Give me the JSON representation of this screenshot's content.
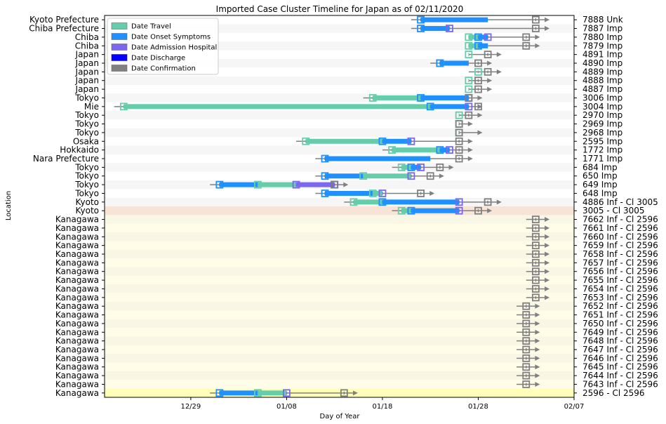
{
  "chart_data": {
    "type": "timeline",
    "title": "Imported Case Cluster Timeline for Japan as of 02/11/2020",
    "xlabel": "Day of Year",
    "ylabel": "Location",
    "x_ticks": [
      {
        "day": 0,
        "label": "12/29"
      },
      {
        "day": 10,
        "label": "01/08"
      },
      {
        "day": 20,
        "label": "01/18"
      },
      {
        "day": 30,
        "label": "01/28"
      },
      {
        "day": 40,
        "label": "02/07"
      }
    ],
    "xlim": [
      -9,
      40
    ],
    "legend": [
      {
        "label": "Date Travel",
        "key": "travel"
      },
      {
        "label": "Date Onset Symptoms",
        "key": "onset"
      },
      {
        "label": "Date Admission Hospital",
        "key": "admission"
      },
      {
        "label": "Date Discharge",
        "key": "discharge"
      },
      {
        "label": "Date Confirmation",
        "key": "confirmation"
      }
    ],
    "colors": {
      "travel": "#66cdaa",
      "onset": "#1e90ff",
      "admission": "#7b68ee",
      "discharge": "#0000ff",
      "confirmation": "#808080",
      "band_cluster_3005": "#f8e4d6",
      "band_cluster_2596": "#fffce8",
      "band_2596_index": "#ffffb8",
      "stripe": "#f2f2f2"
    },
    "rows": [
      {
        "location": "Kyoto Prefecture",
        "case": "7888 Unk",
        "band": "",
        "travel": [],
        "onset": [
          24,
          31
        ],
        "admission": null,
        "confirmation": 36,
        "range": [
          23,
          37
        ]
      },
      {
        "location": "Chiba Prefecture",
        "case": "7887 Imp",
        "band": "",
        "travel": [],
        "onset": [
          24,
          27
        ],
        "admission": 27,
        "confirmation": 36,
        "range": [
          23,
          37
        ]
      },
      {
        "location": "Chiba",
        "case": "7880 Imp",
        "band": "",
        "travel": [
          29,
          30
        ],
        "onset": [
          30,
          31
        ],
        "admission": 31,
        "confirmation": 35,
        "range": [
          29,
          36
        ]
      },
      {
        "location": "Chiba",
        "case": "7879 Imp",
        "band": "",
        "travel": [
          29,
          31
        ],
        "onset": [
          30,
          31
        ],
        "admission": null,
        "confirmation": 35,
        "range": [
          29,
          36
        ]
      },
      {
        "location": "Japan",
        "case": "4891 Imp",
        "band": "",
        "travel": [
          29,
          29
        ],
        "onset": [],
        "admission": null,
        "confirmation": 31,
        "range": [
          29,
          32
        ]
      },
      {
        "location": "Japan",
        "case": "4890 Imp",
        "band": "",
        "travel": [
          26,
          29
        ],
        "onset": [
          26,
          29
        ],
        "admission": null,
        "confirmation": 30,
        "range": [
          25,
          31
        ]
      },
      {
        "location": "Japan",
        "case": "4889 Imp",
        "band": "",
        "travel": [
          30,
          30
        ],
        "onset": [],
        "admission": null,
        "confirmation": 31,
        "range": [
          29,
          32
        ]
      },
      {
        "location": "Japan",
        "case": "4888 Imp",
        "band": "",
        "travel": [
          29,
          29
        ],
        "onset": [],
        "admission": null,
        "confirmation": 30,
        "range": [
          29,
          31
        ]
      },
      {
        "location": "Japan",
        "case": "4887 Imp",
        "band": "",
        "travel": [
          29,
          29
        ],
        "onset": [],
        "admission": null,
        "confirmation": 30,
        "range": [
          29,
          31
        ]
      },
      {
        "location": "Tokyo",
        "case": "3006 Imp",
        "band": "",
        "travel": [
          19,
          24
        ],
        "onset": [
          24,
          29
        ],
        "admission": 29,
        "confirmation": 29,
        "range": [
          18,
          30
        ]
      },
      {
        "location": "Mie",
        "case": "3004 Imp",
        "band": "",
        "travel": [
          -7,
          25
        ],
        "onset": [
          25,
          29
        ],
        "admission": 29,
        "confirmation": 30,
        "range": [
          -8,
          30
        ]
      },
      {
        "location": "Tokyo",
        "case": "2970 Imp",
        "band": "",
        "travel": [
          28,
          28
        ],
        "onset": [],
        "admission": null,
        "confirmation": 29,
        "range": [
          28,
          30
        ]
      },
      {
        "location": "Tokyo",
        "case": "2969 Imp",
        "band": "",
        "travel": [
          28,
          28
        ],
        "onset": [],
        "admission": null,
        "confirmation": 28,
        "range": [
          28,
          29
        ]
      },
      {
        "location": "Tokyo",
        "case": "2968 Imp",
        "band": "",
        "travel": [
          28,
          28
        ],
        "onset": [],
        "admission": null,
        "confirmation": 28,
        "range": [
          28,
          30
        ]
      },
      {
        "location": "Osaka",
        "case": "2595 Imp",
        "band": "",
        "travel": [
          12,
          20
        ],
        "onset": [
          20,
          23
        ],
        "admission": 23,
        "confirmation": 28,
        "range": [
          11,
          29
        ]
      },
      {
        "location": "Hokkaido",
        "case": "1772 Imp",
        "band": "",
        "travel": [
          21,
          26
        ],
        "onset": [
          26,
          27
        ],
        "admission": 27,
        "confirmation": 28,
        "range": [
          20,
          29
        ]
      },
      {
        "location": "Nara Prefecture",
        "case": "1771 Imp",
        "band": "",
        "travel": [],
        "onset": [
          14,
          25
        ],
        "admission": null,
        "confirmation": 28,
        "range": [
          13,
          29
        ]
      },
      {
        "location": "Tokyo",
        "case": "684 Imp",
        "band": "",
        "travel": [
          22,
          23
        ],
        "onset": [
          23,
          24
        ],
        "admission": 24,
        "confirmation": 26,
        "range": [
          21,
          27
        ]
      },
      {
        "location": "Tokyo",
        "case": "650 Imp",
        "band": "",
        "travel": [
          18,
          23
        ],
        "onset": [
          14,
          18
        ],
        "admission": 23,
        "confirmation": 25,
        "range": [
          13,
          26
        ]
      },
      {
        "location": "Tokyo",
        "case": "649 Imp",
        "band": "",
        "travel": [
          7,
          11
        ],
        "onset": [
          3,
          7
        ],
        "admission": 11,
        "discharge": 15,
        "confirmation": 15,
        "range": [
          2,
          16
        ]
      },
      {
        "location": "Tokyo",
        "case": "648 Imp",
        "band": "",
        "travel": [
          19,
          20
        ],
        "onset": [
          14,
          19
        ],
        "admission": 20,
        "confirmation": 24,
        "range": [
          13,
          25
        ]
      },
      {
        "location": "Kyoto",
        "case": "4886 Inf - Cl 3005",
        "band": "",
        "travel": [
          17,
          20
        ],
        "onset": [
          20,
          28
        ],
        "admission": 28,
        "confirmation": 31,
        "range": [
          16,
          32
        ]
      },
      {
        "location": "Kyoto",
        "case": "3005 - Cl 3005",
        "band": "cluster_3005",
        "travel": [
          22,
          23
        ],
        "onset": [
          23,
          28
        ],
        "admission": 28,
        "confirmation": 30,
        "range": [
          21,
          31
        ]
      },
      {
        "location": "Kanagawa",
        "case": "7662 Inf - Cl 2596",
        "band": "cluster_2596",
        "travel": [],
        "onset": [],
        "admission": null,
        "confirmation": 36,
        "range": [
          35,
          37
        ]
      },
      {
        "location": "Kanagawa",
        "case": "7661 Inf - Cl 2596",
        "band": "cluster_2596",
        "travel": [],
        "onset": [],
        "admission": null,
        "confirmation": 36,
        "range": [
          35,
          37
        ]
      },
      {
        "location": "Kanagawa",
        "case": "7660 Inf - Cl 2596",
        "band": "cluster_2596",
        "travel": [],
        "onset": [],
        "admission": null,
        "confirmation": 36,
        "range": [
          35,
          37
        ]
      },
      {
        "location": "Kanagawa",
        "case": "7659 Inf - Cl 2596",
        "band": "cluster_2596",
        "travel": [],
        "onset": [],
        "admission": null,
        "confirmation": 36,
        "range": [
          35,
          37
        ]
      },
      {
        "location": "Kanagawa",
        "case": "7658 Inf - Cl 2596",
        "band": "cluster_2596",
        "travel": [],
        "onset": [],
        "admission": null,
        "confirmation": 36,
        "range": [
          35,
          37
        ]
      },
      {
        "location": "Kanagawa",
        "case": "7657 Inf - Cl 2596",
        "band": "cluster_2596",
        "travel": [],
        "onset": [],
        "admission": null,
        "confirmation": 36,
        "range": [
          35,
          37
        ]
      },
      {
        "location": "Kanagawa",
        "case": "7656 Inf - Cl 2596",
        "band": "cluster_2596",
        "travel": [],
        "onset": [],
        "admission": null,
        "confirmation": 36,
        "range": [
          35,
          37
        ]
      },
      {
        "location": "Kanagawa",
        "case": "7655 Inf - Cl 2596",
        "band": "cluster_2596",
        "travel": [],
        "onset": [],
        "admission": null,
        "confirmation": 36,
        "range": [
          35,
          37
        ]
      },
      {
        "location": "Kanagawa",
        "case": "7654 Inf - Cl 2596",
        "band": "cluster_2596",
        "travel": [],
        "onset": [],
        "admission": null,
        "confirmation": 36,
        "range": [
          35,
          37
        ]
      },
      {
        "location": "Kanagawa",
        "case": "7653 Inf - Cl 2596",
        "band": "cluster_2596",
        "travel": [],
        "onset": [],
        "admission": null,
        "confirmation": 36,
        "range": [
          35,
          37
        ]
      },
      {
        "location": "Kanagawa",
        "case": "7652 Inf - Cl 2596",
        "band": "cluster_2596",
        "travel": [],
        "onset": [],
        "admission": null,
        "confirmation": 35,
        "range": [
          34,
          36
        ]
      },
      {
        "location": "Kanagawa",
        "case": "7651 Inf - Cl 2596",
        "band": "cluster_2596",
        "travel": [],
        "onset": [],
        "admission": null,
        "confirmation": 35,
        "range": [
          34,
          36
        ]
      },
      {
        "location": "Kanagawa",
        "case": "7650 Inf - Cl 2596",
        "band": "cluster_2596",
        "travel": [],
        "onset": [],
        "admission": null,
        "confirmation": 35,
        "range": [
          34,
          36
        ]
      },
      {
        "location": "Kanagawa",
        "case": "7649 Inf - Cl 2596",
        "band": "cluster_2596",
        "travel": [],
        "onset": [],
        "admission": null,
        "confirmation": 35,
        "range": [
          34,
          36
        ]
      },
      {
        "location": "Kanagawa",
        "case": "7648 Inf - Cl 2596",
        "band": "cluster_2596",
        "travel": [],
        "onset": [],
        "admission": null,
        "confirmation": 35,
        "range": [
          34,
          36
        ]
      },
      {
        "location": "Kanagawa",
        "case": "7647 Inf - Cl 2596",
        "band": "cluster_2596",
        "travel": [],
        "onset": [],
        "admission": null,
        "confirmation": 35,
        "range": [
          34,
          36
        ]
      },
      {
        "location": "Kanagawa",
        "case": "7646 Inf - Cl 2596",
        "band": "cluster_2596",
        "travel": [],
        "onset": [],
        "admission": null,
        "confirmation": 35,
        "range": [
          34,
          36
        ]
      },
      {
        "location": "Kanagawa",
        "case": "7645 Inf - Cl 2596",
        "band": "cluster_2596",
        "travel": [],
        "onset": [],
        "admission": null,
        "confirmation": 35,
        "range": [
          34,
          36
        ]
      },
      {
        "location": "Kanagawa",
        "case": "7644 Inf - Cl 2596",
        "band": "cluster_2596",
        "travel": [],
        "onset": [],
        "admission": null,
        "confirmation": 35,
        "range": [
          34,
          36
        ]
      },
      {
        "location": "Kanagawa",
        "case": "7643 Inf - Cl 2596",
        "band": "cluster_2596",
        "travel": [],
        "onset": [],
        "admission": null,
        "confirmation": 35,
        "range": [
          34,
          36
        ]
      },
      {
        "location": "Kanagawa",
        "case": "2596 - Cl 2596",
        "band": "index_2596",
        "travel": [
          7,
          10
        ],
        "onset": [
          3,
          7
        ],
        "admission": 10,
        "confirmation": 16,
        "range": [
          2,
          17
        ]
      }
    ]
  }
}
